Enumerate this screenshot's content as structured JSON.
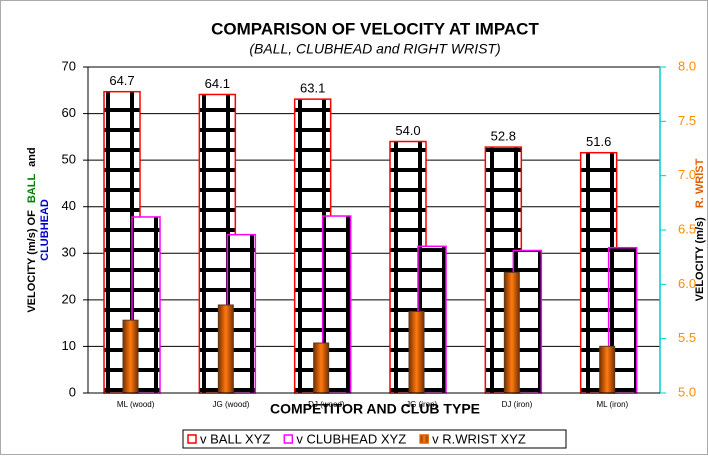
{
  "chart_data": {
    "type": "bar",
    "title": "COMPARISON OF VELOCITY AT IMPACT",
    "subtitle": "(BALL, CLUBHEAD and RIGHT WRIST)",
    "x_label": "COMPETITOR AND CLUB TYPE",
    "y_label": [
      "VELOCITY (m/s) OF",
      "BALL",
      "and",
      "CLUBHEAD"
    ],
    "y2_label": [
      "VELOCITY (m/s)",
      "R. WRIST"
    ],
    "categories": [
      "ML (wood)",
      "JG (wood)",
      "DJ (wood)",
      "JG (iron)",
      "DJ (iron)",
      "ML (iron)"
    ],
    "series": [
      {
        "name": "v BALL XYZ",
        "color": "#ff0000",
        "values": [
          64.7,
          64.1,
          63.1,
          54.0,
          52.8,
          51.6
        ],
        "value_labels": [
          "64.7",
          "64.1",
          "63.1",
          "54.0",
          "52.8",
          "51.6"
        ]
      },
      {
        "name": "v CLUBHEAD XYZ",
        "color": "#ff00ff",
        "values": [
          37.8,
          34.0,
          38.0,
          31.5,
          30.6,
          31.2
        ]
      },
      {
        "name": "v R.WRIST XYZ",
        "color": "#e06000",
        "axis": "y2",
        "values": [
          5.67,
          5.81,
          5.46,
          5.75,
          6.11,
          5.43
        ]
      }
    ],
    "ylim": [
      0,
      70
    ],
    "yticks": [
      0,
      10,
      20,
      30,
      40,
      50,
      60,
      70
    ],
    "y2lim": [
      5,
      8
    ],
    "y2ticks": [
      {
        "value": 5,
        "label": "5.0"
      },
      5.5,
      {
        "value": 6,
        "label": "6.0"
      },
      6.5,
      {
        "value": 7,
        "label": "7.0"
      },
      7.5,
      {
        "value": 8,
        "label": "8.0"
      }
    ],
    "grid": true,
    "legend": "bottom"
  }
}
